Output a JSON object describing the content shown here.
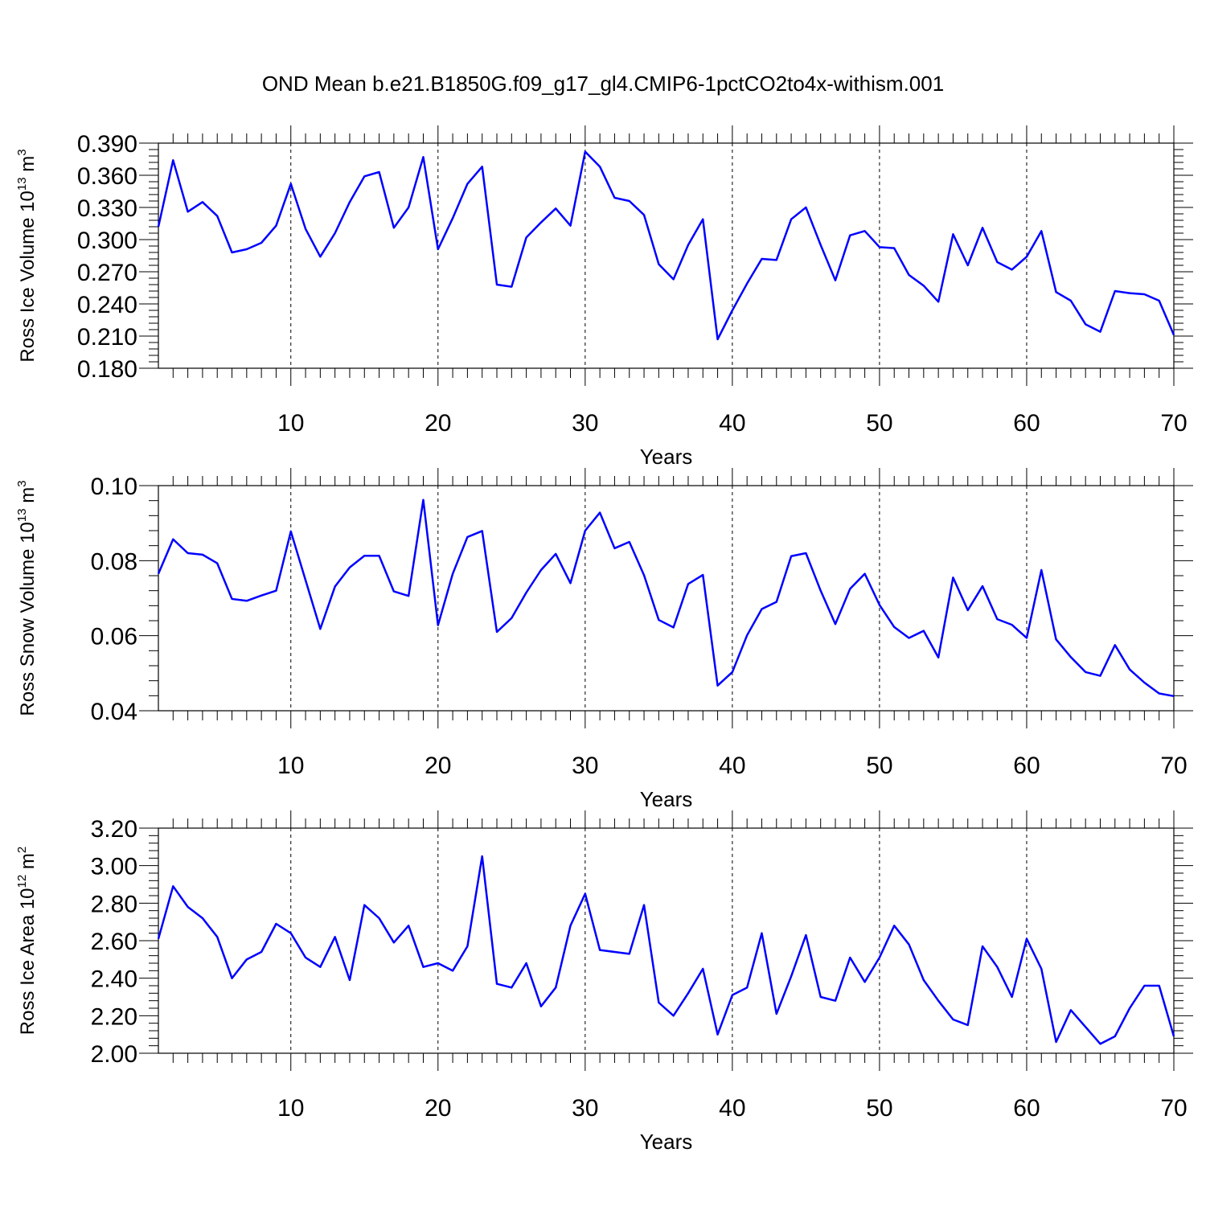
{
  "title": "OND Mean b.e21.B1850G.f09_g17_gl4.CMIP6-1pctCO2to4x-withism.001",
  "colors": {
    "line": "#0000ff",
    "frame": "#000000",
    "grid": "#000000"
  },
  "chart_data": [
    {
      "type": "line",
      "ylabel": {
        "pre": "Ross Ice Volume 10",
        "exp": "13",
        "unit": " m",
        "unit_exp": "3"
      },
      "xlabel": "Years",
      "xlim": [
        1,
        70
      ],
      "ylim": [
        0.18,
        0.39
      ],
      "xticks": [
        "10",
        "20",
        "30",
        "40",
        "50",
        "60",
        "70"
      ],
      "yticks": [
        "0.180",
        "0.210",
        "0.240",
        "0.270",
        "0.300",
        "0.330",
        "0.360",
        "0.390"
      ],
      "x_start": 1,
      "values": [
        0.312,
        0.374,
        0.326,
        0.335,
        0.322,
        0.288,
        0.291,
        0.297,
        0.313,
        0.352,
        0.31,
        0.284,
        0.306,
        0.335,
        0.359,
        0.363,
        0.311,
        0.33,
        0.377,
        0.291,
        0.32,
        0.352,
        0.368,
        0.258,
        0.256,
        0.302,
        0.316,
        0.329,
        0.313,
        0.382,
        0.368,
        0.339,
        0.336,
        0.323,
        0.277,
        0.263,
        0.295,
        0.319,
        0.207,
        0.234,
        0.259,
        0.282,
        0.281,
        0.319,
        0.33,
        0.295,
        0.262,
        0.304,
        0.308,
        0.293,
        0.292,
        0.267,
        0.257,
        0.242,
        0.305,
        0.276,
        0.311,
        0.279,
        0.272,
        0.284,
        0.308,
        0.251,
        0.243,
        0.221,
        0.214,
        0.252,
        0.25,
        0.249,
        0.243,
        0.211
      ]
    },
    {
      "type": "line",
      "ylabel": {
        "pre": "Ross Snow Volume 10",
        "exp": "13",
        "unit": " m",
        "unit_exp": "3"
      },
      "xlabel": "Years",
      "xlim": [
        1,
        70
      ],
      "ylim": [
        0.04,
        0.1
      ],
      "xticks": [
        "10",
        "20",
        "30",
        "40",
        "50",
        "60",
        "70"
      ],
      "yticks": [
        "0.04",
        "0.06",
        "0.08",
        "0.10"
      ],
      "x_start": 1,
      "values": [
        0.0765,
        0.0857,
        0.082,
        0.0816,
        0.0793,
        0.0698,
        0.0693,
        0.0707,
        0.072,
        0.0878,
        0.0748,
        0.0618,
        0.0731,
        0.0782,
        0.0813,
        0.0813,
        0.0718,
        0.0706,
        0.0962,
        0.0628,
        0.0765,
        0.0863,
        0.0879,
        0.061,
        0.0647,
        0.0715,
        0.0775,
        0.0818,
        0.074,
        0.088,
        0.0928,
        0.0833,
        0.085,
        0.0761,
        0.0642,
        0.0622,
        0.0738,
        0.0762,
        0.0467,
        0.0503,
        0.0601,
        0.0671,
        0.069,
        0.0812,
        0.082,
        0.072,
        0.0631,
        0.0725,
        0.0765,
        0.0682,
        0.0623,
        0.0594,
        0.0613,
        0.0542,
        0.0755,
        0.0668,
        0.0732,
        0.0644,
        0.0629,
        0.0594,
        0.0775,
        0.059,
        0.0543,
        0.0503,
        0.0493,
        0.0575,
        0.051,
        0.0475,
        0.0446,
        0.0439
      ]
    },
    {
      "type": "line",
      "ylabel": {
        "pre": "Ross Ice Area 10",
        "exp": "12",
        "unit": " m",
        "unit_exp": "2"
      },
      "xlabel": "Years",
      "xlim": [
        1,
        70
      ],
      "ylim": [
        2.0,
        3.2
      ],
      "xticks": [
        "10",
        "20",
        "30",
        "40",
        "50",
        "60",
        "70"
      ],
      "yticks": [
        "2.00",
        "2.20",
        "2.40",
        "2.60",
        "2.80",
        "3.00",
        "3.20"
      ],
      "x_start": 1,
      "values": [
        2.61,
        2.89,
        2.78,
        2.72,
        2.62,
        2.4,
        2.5,
        2.54,
        2.69,
        2.64,
        2.51,
        2.46,
        2.62,
        2.39,
        2.79,
        2.72,
        2.59,
        2.68,
        2.46,
        2.48,
        2.44,
        2.57,
        3.05,
        2.37,
        2.35,
        2.48,
        2.25,
        2.35,
        2.68,
        2.85,
        2.55,
        2.54,
        2.53,
        2.79,
        2.27,
        2.2,
        2.32,
        2.45,
        2.1,
        2.31,
        2.35,
        2.64,
        2.21,
        2.41,
        2.63,
        2.3,
        2.28,
        2.51,
        2.38,
        2.51,
        2.68,
        2.58,
        2.39,
        2.28,
        2.18,
        2.15,
        2.57,
        2.46,
        2.3,
        2.61,
        2.45,
        2.06,
        2.23,
        2.14,
        2.05,
        2.09,
        2.24,
        2.36,
        2.36,
        2.09
      ]
    }
  ]
}
